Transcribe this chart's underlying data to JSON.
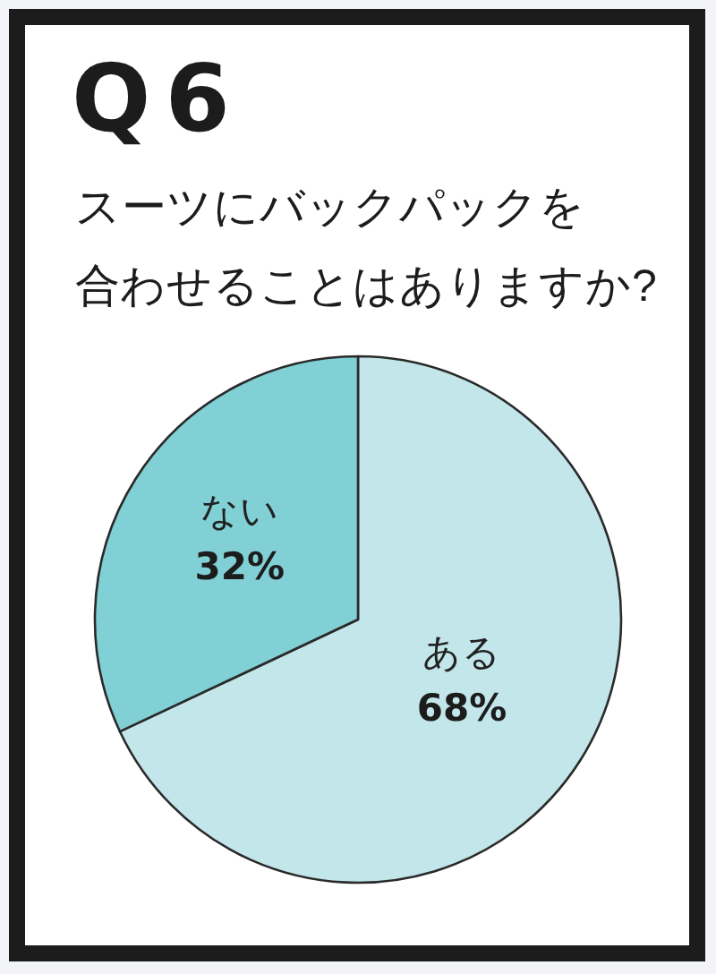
{
  "chart_data": {
    "type": "pie",
    "title": "Q6",
    "subtitle": "スーツにバックパックを合わせることはありますか?",
    "categories": [
      "ある",
      "ない"
    ],
    "values": [
      68,
      32
    ],
    "colors": [
      "#c2e6e9",
      "#80d0d5"
    ],
    "value_labels": [
      "68%",
      "32%"
    ]
  }
}
